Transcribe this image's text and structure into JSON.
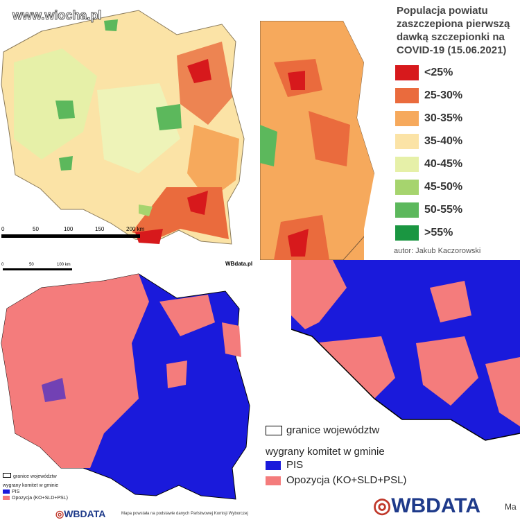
{
  "vaccination_map": {
    "watermark": "www.wiocha.pl",
    "scale": [
      "0",
      "50",
      "100",
      "150",
      "200 km"
    ],
    "legend": {
      "title": "Populacja powiatu zaszczepiona pierwszą dawką szczepionki na COVID-19 (15.06.2021)",
      "items": [
        {
          "label": "<25%",
          "color": "#d7191c"
        },
        {
          "label": "25-30%",
          "color": "#ea6b3d"
        },
        {
          "label": "30-35%",
          "color": "#f6a95c"
        },
        {
          "label": "35-40%",
          "color": "#fbe3a6"
        },
        {
          "label": "40-45%",
          "color": "#e6f0a8"
        },
        {
          "label": "45-50%",
          "color": "#a6d46e"
        },
        {
          "label": "50-55%",
          "color": "#5cb85c"
        },
        {
          "label": ">55%",
          "color": "#1a9641"
        }
      ],
      "author": "autor: Jakub Kaczorowski"
    }
  },
  "election_map": {
    "scale": [
      "0",
      "50",
      "100 km"
    ],
    "source_site": "WBdata.pl",
    "legend": {
      "border": "granice województw",
      "title": "wygrany komitet w gminie",
      "items": [
        {
          "label": "PIS",
          "color": "#1a1adb"
        },
        {
          "label": "Opozycja (KO+SLD+PSL)",
          "color": "#f47c7c"
        }
      ]
    },
    "brand": "WBDATA",
    "source_note": "Mapa powstała na podstawie danych Państwowej Komisji Wyborczej",
    "source_note_cut": "Ma"
  }
}
